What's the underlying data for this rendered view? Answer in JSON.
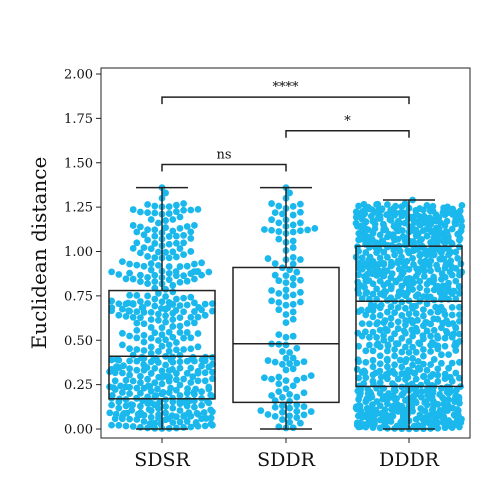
{
  "chart_data": {
    "type": "box_swarm",
    "ylabel": "Euclidean distance",
    "ylim": [
      0.0,
      2.05
    ],
    "yticks": [
      0.0,
      0.25,
      0.5,
      0.75,
      1.0,
      1.25,
      1.5,
      1.75,
      2.0
    ],
    "ytick_labels": [
      "0.00",
      "0.25",
      "0.50",
      "0.75",
      "1.00",
      "1.25",
      "1.50",
      "1.75",
      "2.00"
    ],
    "grid": false,
    "point_color": "#1ab8ec",
    "box_color": "#222222",
    "categories": [
      "SDSR",
      "SDDR",
      "DDDR"
    ],
    "boxes": [
      {
        "category": "SDSR",
        "whisker_low": 0.0,
        "q1": 0.17,
        "median": 0.41,
        "q3": 0.78,
        "whisker_high": 1.36,
        "point_count": 430,
        "point_max": 1.36
      },
      {
        "category": "SDDR",
        "whisker_low": 0.0,
        "q1": 0.15,
        "median": 0.48,
        "q3": 0.91,
        "whisker_high": 1.36,
        "point_count": 120,
        "point_max": 1.36
      },
      {
        "category": "DDDR",
        "whisker_low": 0.0,
        "q1": 0.24,
        "median": 0.72,
        "q3": 1.03,
        "whisker_high": 1.29,
        "point_count": 900,
        "point_max": 1.29
      }
    ],
    "significance": [
      {
        "from": "SDSR",
        "to": "SDDR",
        "y": 1.49,
        "label": "ns"
      },
      {
        "from": "SDDR",
        "to": "DDDR",
        "y": 1.68,
        "label": "*"
      },
      {
        "from": "SDSR",
        "to": "DDDR",
        "y": 1.87,
        "label": "****"
      }
    ]
  }
}
